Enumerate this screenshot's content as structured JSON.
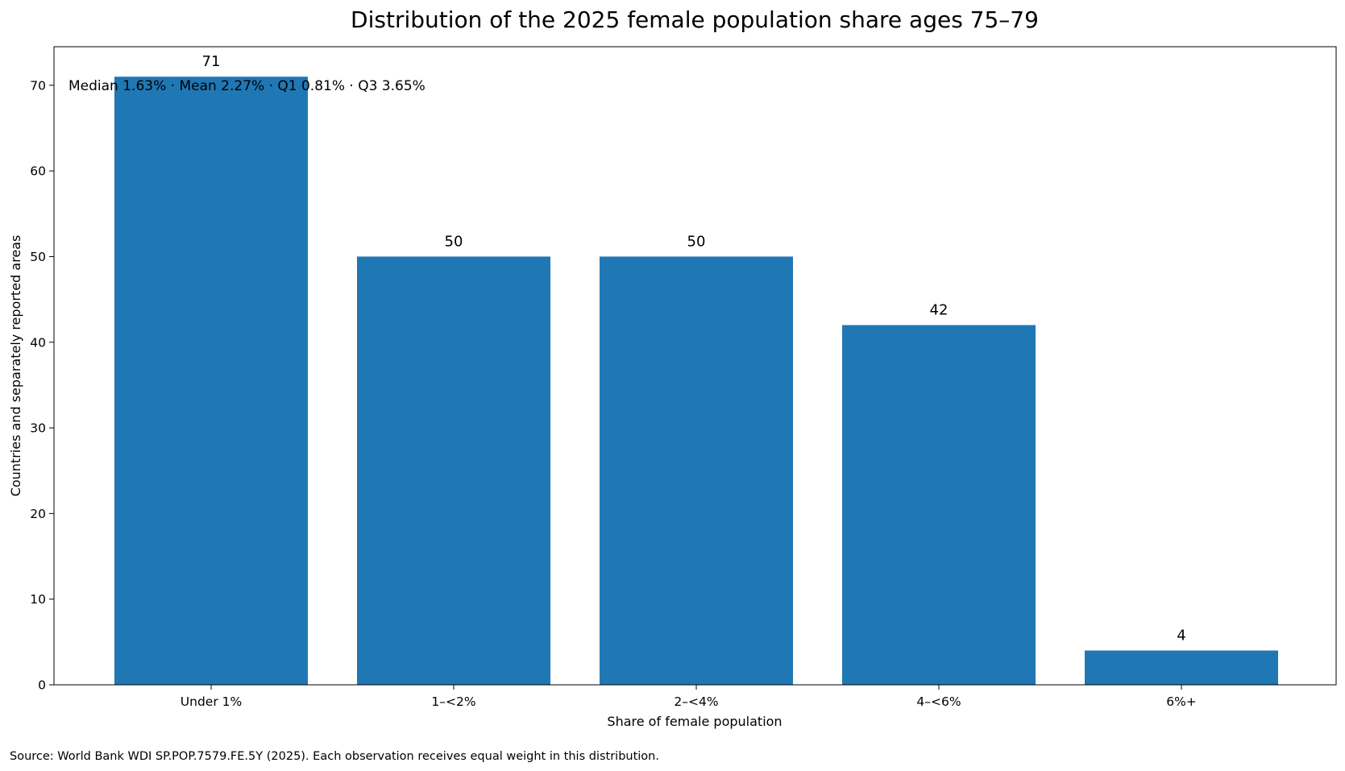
{
  "chart_data": {
    "type": "bar",
    "title": "Distribution of the 2025 female population share ages 75–79",
    "xlabel": "Share of female population",
    "ylabel": "Countries and separately reported areas",
    "categories": [
      "Under 1%",
      "1–<2%",
      "2–<4%",
      "4–<6%",
      "6%+"
    ],
    "values": [
      71,
      50,
      50,
      42,
      4
    ],
    "ylim": [
      0,
      74.5
    ],
    "yticks": [
      0,
      10,
      20,
      30,
      40,
      50,
      60,
      70
    ],
    "bar_color": "#1f77b4",
    "grid": false,
    "annotation": "Median 1.63% · Mean 2.27% · Q1 0.81% · Q3 3.65%",
    "source": "Source: World Bank WDI SP.POP.7579.FE.5Y (2025). Each observation receives equal weight in this distribution."
  }
}
